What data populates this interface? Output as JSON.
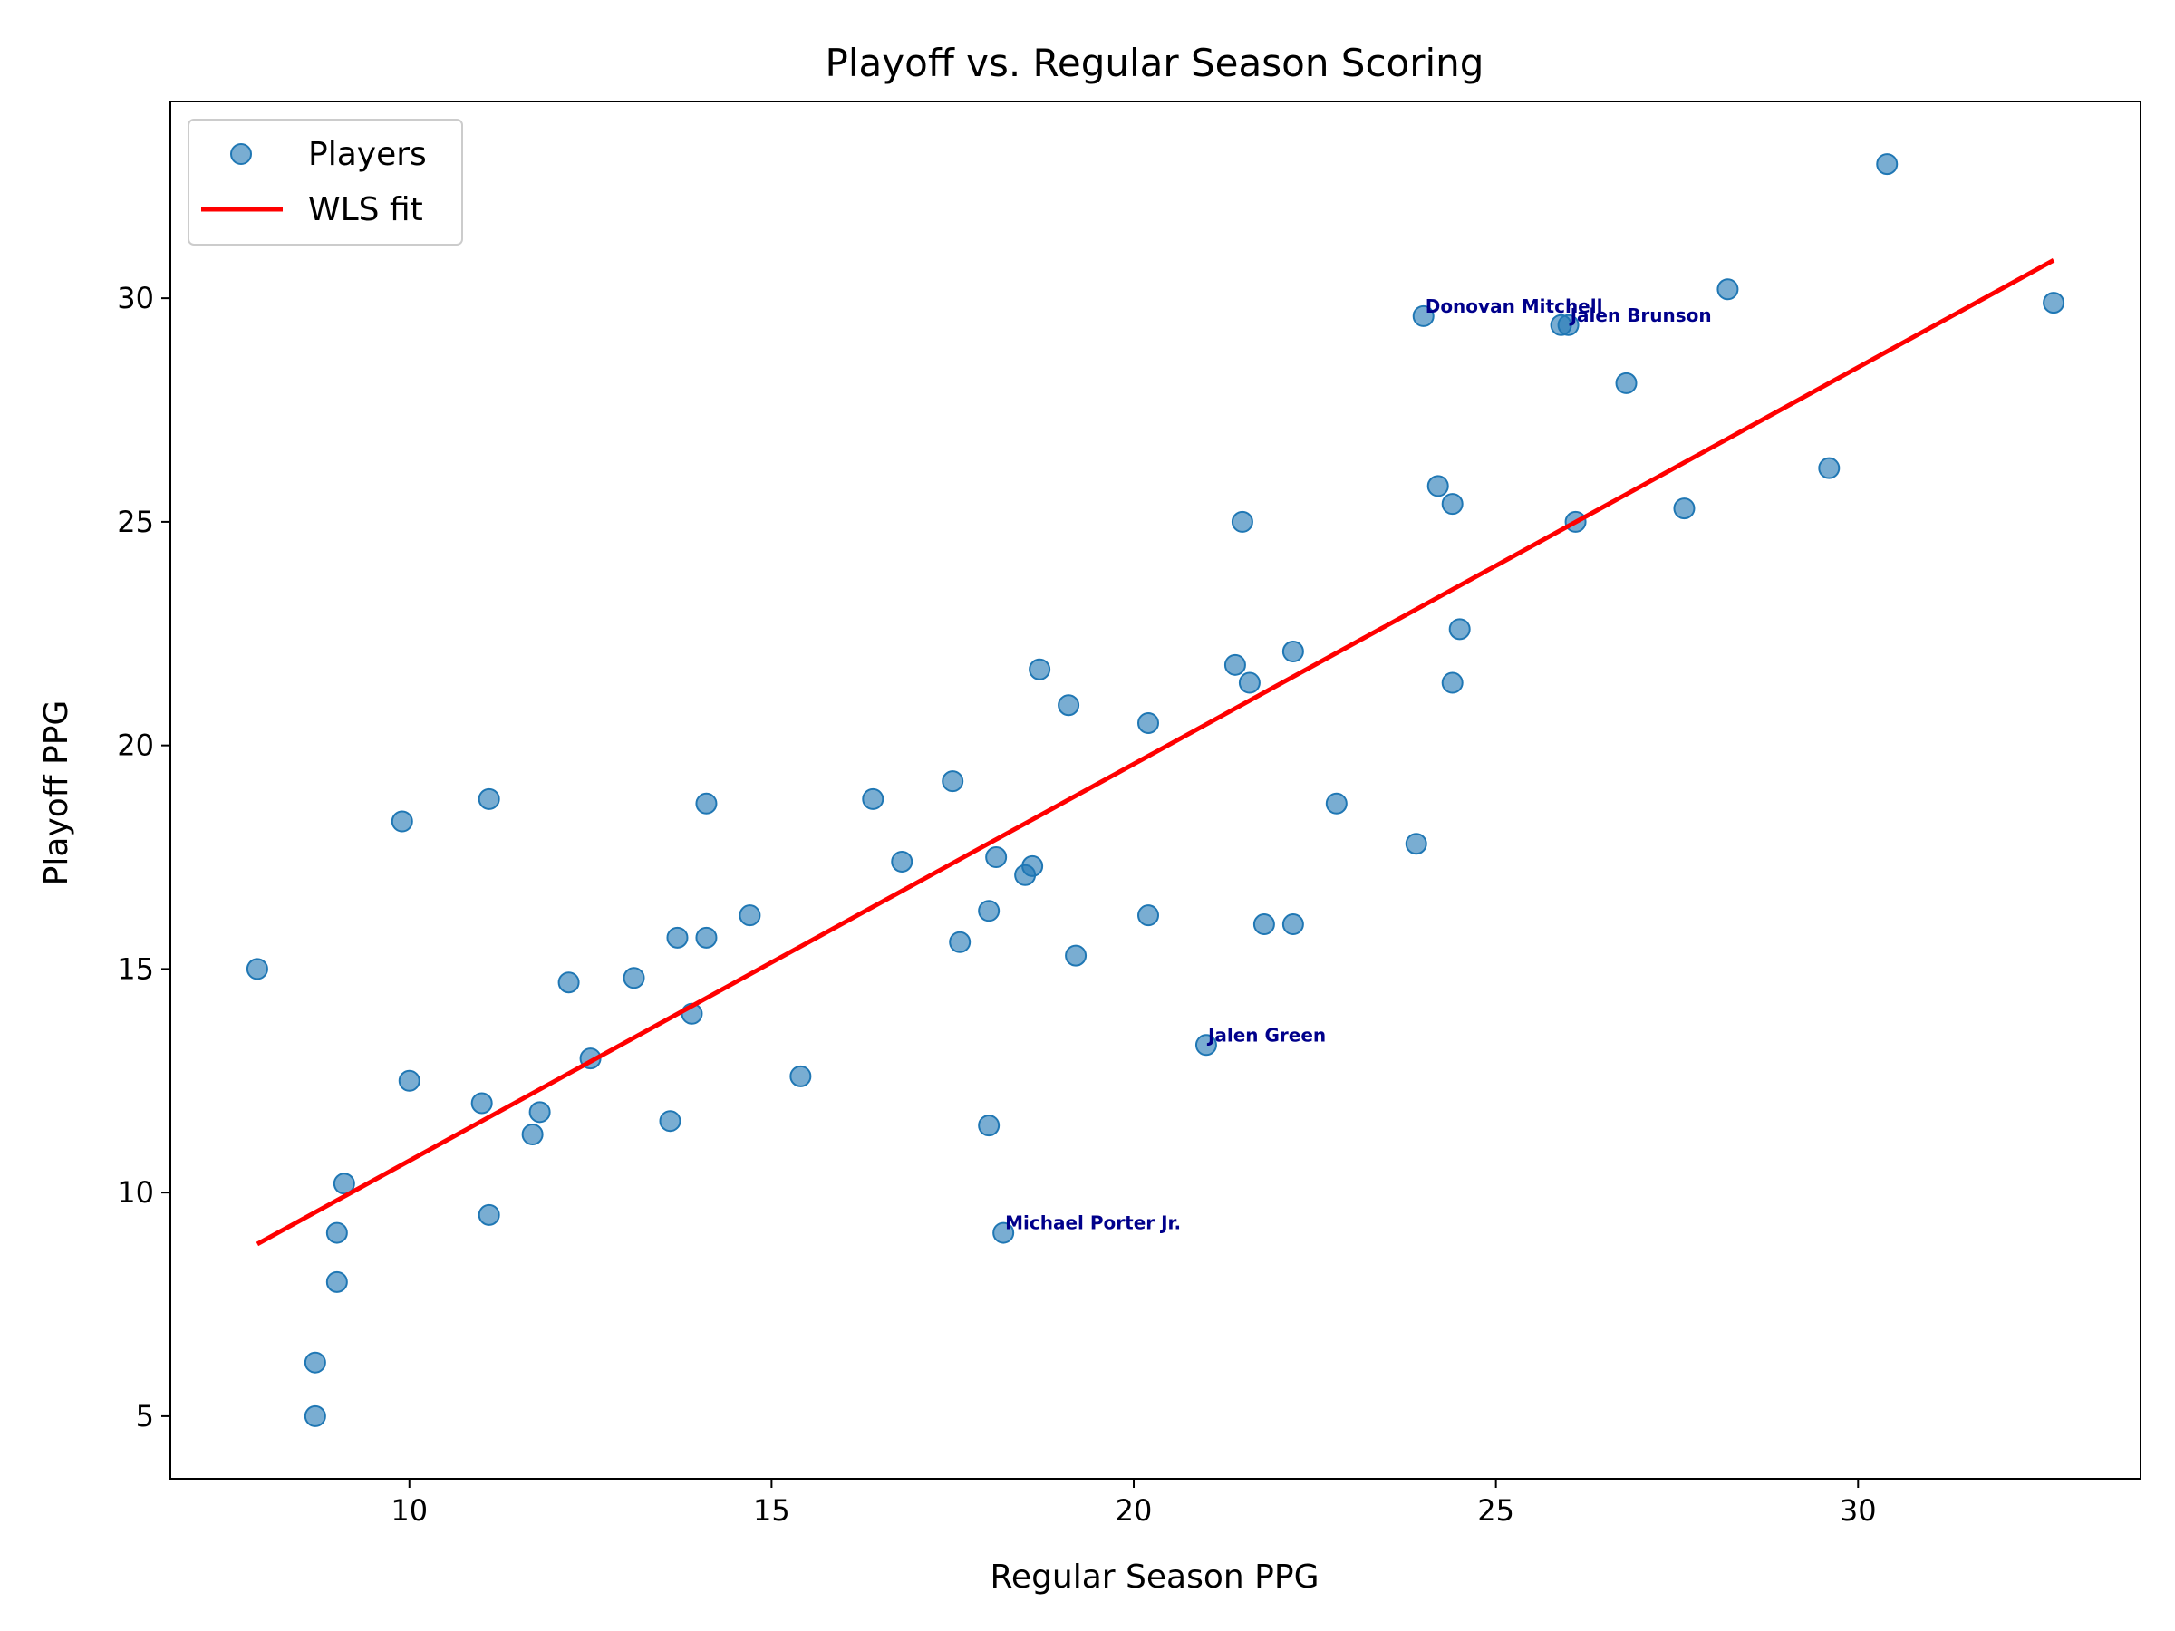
{
  "chart_data": {
    "type": "scatter",
    "title": "Playoff vs. Regular Season Scoring",
    "xlabel": "Regular Season PPG",
    "ylabel": "Playoff PPG",
    "xlim": [
      6.7,
      33.9
    ],
    "ylim": [
      3.6,
      34.4
    ],
    "xticks": [
      10,
      15,
      20,
      25,
      30
    ],
    "yticks": [
      5,
      10,
      15,
      20,
      25,
      30
    ],
    "grid": false,
    "legend": {
      "placement": "top-left",
      "entries": [
        {
          "label": "Players",
          "kind": "marker",
          "color": "#1f77b4"
        },
        {
          "label": "WLS fit",
          "kind": "line",
          "color": "#ff0000"
        }
      ]
    },
    "series": [
      {
        "name": "Players",
        "color": "#1f77b4",
        "points": [
          [
            7.9,
            15.0
          ],
          [
            8.7,
            6.2
          ],
          [
            8.7,
            5.0
          ],
          [
            9.0,
            9.1
          ],
          [
            9.0,
            8.0
          ],
          [
            9.1,
            10.2
          ],
          [
            9.9,
            18.3
          ],
          [
            10.0,
            12.5
          ],
          [
            11.0,
            12.0
          ],
          [
            11.1,
            18.8
          ],
          [
            11.1,
            9.5
          ],
          [
            11.7,
            11.3
          ],
          [
            11.8,
            11.8
          ],
          [
            12.2,
            14.7
          ],
          [
            12.5,
            13.0
          ],
          [
            13.1,
            14.8
          ],
          [
            13.6,
            11.6
          ],
          [
            13.7,
            15.7
          ],
          [
            13.9,
            14.0
          ],
          [
            14.1,
            18.7
          ],
          [
            14.1,
            15.7
          ],
          [
            14.7,
            16.2
          ],
          [
            15.4,
            12.6
          ],
          [
            16.4,
            18.8
          ],
          [
            16.8,
            17.4
          ],
          [
            17.5,
            19.2
          ],
          [
            17.6,
            15.6
          ],
          [
            18.0,
            16.3
          ],
          [
            18.0,
            11.5
          ],
          [
            18.1,
            17.5
          ],
          [
            18.2,
            9.1
          ],
          [
            18.5,
            17.1
          ],
          [
            18.6,
            17.3
          ],
          [
            18.7,
            21.7
          ],
          [
            19.1,
            20.9
          ],
          [
            19.2,
            15.3
          ],
          [
            20.2,
            20.5
          ],
          [
            20.2,
            16.2
          ],
          [
            21.0,
            13.3
          ],
          [
            21.4,
            21.8
          ],
          [
            21.5,
            25.0
          ],
          [
            21.6,
            21.4
          ],
          [
            21.8,
            16.0
          ],
          [
            22.2,
            22.1
          ],
          [
            22.2,
            16.0
          ],
          [
            22.8,
            18.7
          ],
          [
            23.9,
            17.8
          ],
          [
            24.0,
            29.6
          ],
          [
            24.2,
            25.8
          ],
          [
            24.4,
            25.4
          ],
          [
            24.4,
            21.4
          ],
          [
            24.5,
            22.6
          ],
          [
            25.9,
            29.4
          ],
          [
            26.0,
            29.4
          ],
          [
            26.1,
            25.0
          ],
          [
            26.8,
            28.1
          ],
          [
            27.6,
            25.3
          ],
          [
            28.2,
            30.2
          ],
          [
            29.6,
            26.2
          ],
          [
            30.4,
            33.0
          ],
          [
            32.7,
            29.9
          ]
        ]
      },
      {
        "name": "WLS fit",
        "color": "#ff0000",
        "line": [
          [
            7.9,
            8.85
          ],
          [
            32.7,
            30.85
          ]
        ]
      }
    ],
    "annotations": [
      {
        "text": "Donovan Mitchell",
        "x": 24.0,
        "y": 29.6
      },
      {
        "text": "Jalen Brunson",
        "x": 26.0,
        "y": 29.4
      },
      {
        "text": "Jalen Green",
        "x": 21.0,
        "y": 13.3
      },
      {
        "text": "Michael Porter Jr.",
        "x": 18.2,
        "y": 9.1
      }
    ]
  }
}
